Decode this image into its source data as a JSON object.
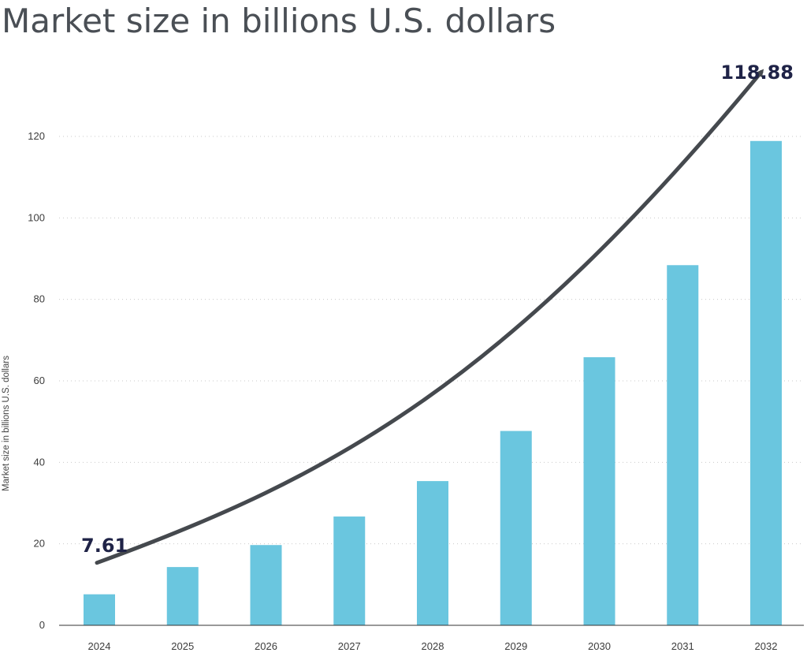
{
  "chart_data": {
    "type": "bar",
    "title": "Market size in billions U.S. dollars",
    "xlabel": "",
    "ylabel": "Market size in billions U.S. dollars",
    "categories": [
      "2024",
      "2025",
      "2026",
      "2027",
      "2028",
      "2029",
      "2030",
      "2031",
      "2032"
    ],
    "values": [
      7.61,
      14.3,
      19.7,
      26.7,
      35.4,
      47.7,
      65.8,
      88.4,
      118.88
    ],
    "ylim": [
      0,
      130
    ],
    "yticks": [
      0,
      20,
      40,
      60,
      80,
      100,
      120
    ],
    "grid": true,
    "bar_color": "#6ac6df",
    "arrow_color": "#45494e",
    "annotations": [
      {
        "text": "7.61",
        "category": "2024"
      },
      {
        "text": "118.88",
        "category": "2032"
      }
    ]
  }
}
